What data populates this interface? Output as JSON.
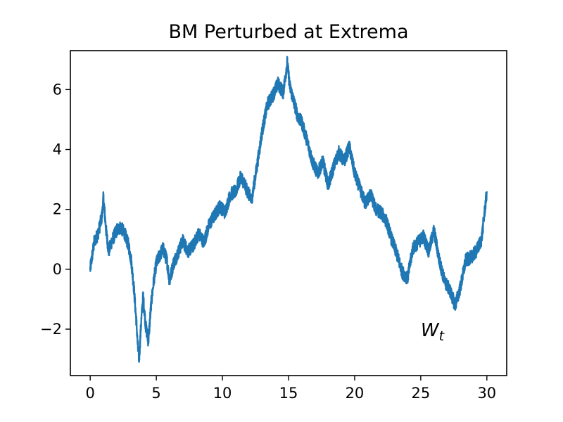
{
  "chart_data": {
    "type": "line",
    "title": "BM Perturbed at Extrema",
    "xlabel": "",
    "ylabel": "",
    "xlim": [
      -1.5,
      31.5
    ],
    "ylim": [
      -3.55,
      7.3
    ],
    "x_ticks": [
      0,
      5,
      10,
      15,
      20,
      25,
      30
    ],
    "x_tick_labels": [
      "0",
      "5",
      "10",
      "15",
      "20",
      "25",
      "30"
    ],
    "y_ticks": [
      -2,
      0,
      2,
      4,
      6
    ],
    "y_tick_labels": [
      "−2",
      "0",
      "2",
      "4",
      "6"
    ],
    "grid": false,
    "annotation": {
      "text": "W",
      "subscript": "t",
      "x": 25.0,
      "y": -2.0
    },
    "series": [
      {
        "color": "#1f77b4",
        "x": [
          0,
          0.3,
          0.6,
          0.9,
          1.0,
          1.2,
          1.4,
          1.6,
          1.8,
          2.0,
          2.3,
          2.6,
          2.9,
          3.1,
          3.3,
          3.5,
          3.6,
          3.7,
          3.85,
          4.0,
          4.2,
          4.4,
          4.6,
          4.8,
          5.0,
          5.3,
          5.5,
          5.8,
          6.0,
          6.3,
          6.6,
          7.0,
          7.4,
          7.8,
          8.2,
          8.6,
          9.0,
          9.4,
          9.8,
          10.2,
          10.6,
          11.0,
          11.4,
          11.8,
          12.2,
          12.6,
          13.0,
          13.4,
          13.8,
          14.2,
          14.6,
          14.9,
          15.1,
          15.4,
          15.7,
          16.0,
          16.4,
          16.8,
          17.2,
          17.6,
          18.0,
          18.4,
          18.8,
          19.2,
          19.6,
          20.0,
          20.4,
          20.8,
          21.2,
          21.6,
          22.0,
          22.4,
          22.8,
          23.2,
          23.6,
          24.0,
          24.4,
          24.8,
          25.2,
          25.6,
          26.0,
          26.4,
          26.8,
          27.2,
          27.6,
          28.0,
          28.4,
          28.8,
          29.2,
          29.6,
          30.0
        ],
        "values": [
          0.0,
          0.9,
          1.2,
          1.8,
          2.4,
          1.3,
          0.6,
          0.9,
          1.1,
          1.3,
          1.4,
          1.2,
          0.8,
          0.3,
          -0.6,
          -1.8,
          -2.6,
          -3.0,
          -1.8,
          -0.9,
          -1.9,
          -2.4,
          -1.2,
          -0.4,
          0.2,
          0.5,
          0.7,
          0.3,
          -0.4,
          0.2,
          0.5,
          0.95,
          0.6,
          0.8,
          1.2,
          0.9,
          1.5,
          1.8,
          2.1,
          1.9,
          2.5,
          2.6,
          3.1,
          2.7,
          2.3,
          3.4,
          4.6,
          5.5,
          5.8,
          6.2,
          5.9,
          6.9,
          6.1,
          5.6,
          5.1,
          4.9,
          4.3,
          3.6,
          3.2,
          3.6,
          2.8,
          3.4,
          3.9,
          3.6,
          4.1,
          3.2,
          2.7,
          2.2,
          2.5,
          2.0,
          1.9,
          1.6,
          1.0,
          0.5,
          -0.1,
          -0.3,
          0.7,
          0.9,
          1.1,
          0.6,
          1.3,
          0.3,
          -0.4,
          -0.7,
          -1.2,
          -0.6,
          0.3,
          0.4,
          0.6,
          1.0,
          2.6
        ]
      }
    ]
  }
}
